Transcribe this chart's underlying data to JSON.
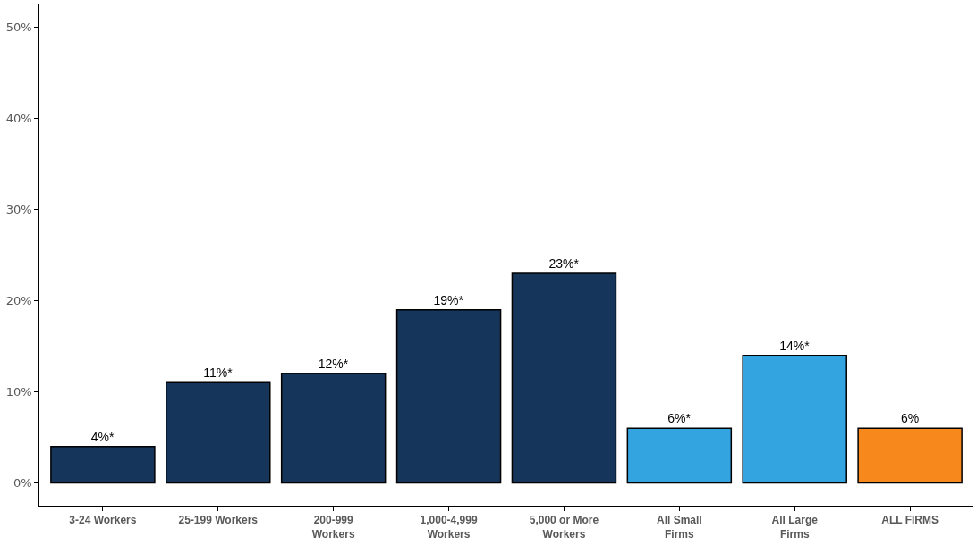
{
  "chart_data": {
    "type": "bar",
    "categories": [
      "3-24 Workers",
      "25-199 Workers",
      "200-999 Workers",
      "1,000-4,999 Workers",
      "5,000 or More Workers",
      "All Small Firms",
      "All Large Firms",
      "ALL FIRMS"
    ],
    "values": [
      4,
      11,
      12,
      19,
      23,
      6,
      14,
      6
    ],
    "colors": [
      "#15355a",
      "#15355a",
      "#15355a",
      "#15355a",
      "#15355a",
      "#34a4e0",
      "#34a4e0",
      "#f7891c"
    ],
    "value_labels": [
      "4%*",
      "11%*",
      "12%*",
      "19%*",
      "23%*",
      "6%*",
      "14%*",
      "6%"
    ],
    "ylim": [
      -2.5,
      52.5
    ],
    "yticks": [
      {
        "value": 0,
        "label": "0%"
      },
      {
        "value": 10,
        "label": "10%"
      },
      {
        "value": 20,
        "label": "20%"
      },
      {
        "value": 30,
        "label": "30%"
      },
      {
        "value": 40,
        "label": "40%"
      },
      {
        "value": 50,
        "label": "50%"
      }
    ],
    "grid": false
  }
}
